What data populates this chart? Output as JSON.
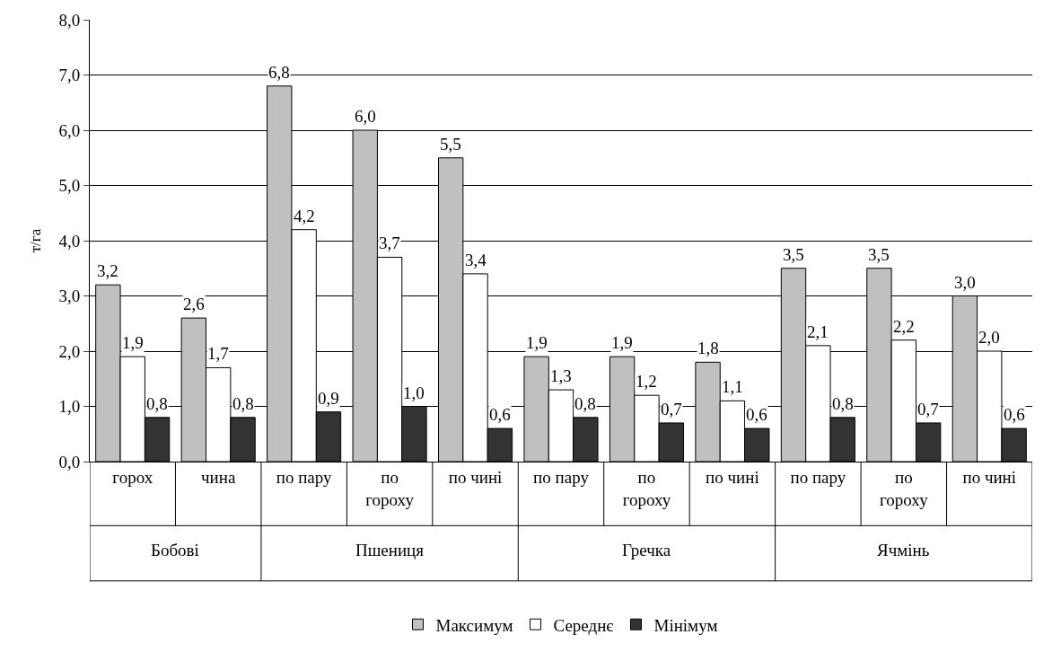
{
  "chart_data": {
    "type": "bar",
    "ylabel": "т/га",
    "categories": [
      "горох",
      "чина",
      "по пару",
      "по гороху",
      "по чині",
      "по пару",
      "по гороху",
      "по чині",
      "по пару",
      "по гороху",
      "по чині"
    ],
    "annotations": [
      "Бобові",
      "Пшениця",
      "Гречка",
      "Ячмінь"
    ],
    "series": [
      {
        "name": "Максимум",
        "color": "#c0c0c0",
        "values": [
          3.2,
          2.6,
          6.8,
          6.0,
          5.5,
          1.9,
          1.9,
          1.8,
          3.5,
          3.5,
          3.0
        ],
        "value_labels": [
          "3,2",
          "2,6",
          "6,8",
          "6,0",
          "5,5",
          "1,9",
          "1,9",
          "1,8",
          "3,5",
          "3,5",
          "3,0"
        ]
      },
      {
        "name": "Середнє",
        "color": "#ffffff",
        "values": [
          1.9,
          1.7,
          4.2,
          3.7,
          3.4,
          1.3,
          1.2,
          1.1,
          2.1,
          2.2,
          2.0
        ],
        "value_labels": [
          "1,9",
          "1,7",
          "4,2",
          "3,7",
          "3,4",
          "1,3",
          "1,2",
          "1,1",
          "2,1",
          "2,2",
          "2,0"
        ]
      },
      {
        "name": "Мінімум",
        "color": "#333333",
        "values": [
          0.8,
          0.8,
          0.9,
          1.0,
          0.6,
          0.8,
          0.7,
          0.6,
          0.8,
          0.7,
          0.6
        ],
        "value_labels": [
          "0,8",
          "0,8",
          "0,9",
          "1,0",
          "0,6",
          "0,8",
          "0,7",
          "0,6",
          "0,8",
          "0,7",
          "0,6"
        ]
      }
    ],
    "ylim": [
      0,
      8
    ],
    "yticks": [
      {
        "value": 0,
        "label": "0,0"
      },
      {
        "value": 1,
        "label": "1,0"
      },
      {
        "value": 2,
        "label": "2,0"
      },
      {
        "value": 3,
        "label": "3,0"
      },
      {
        "value": 4,
        "label": "4,0"
      },
      {
        "value": 5,
        "label": "5,0"
      },
      {
        "value": 6,
        "label": "6,0"
      },
      {
        "value": 7,
        "label": "7,0"
      },
      {
        "value": 8,
        "label": "8,0"
      }
    ],
    "grid": "y",
    "legend": "bottom"
  }
}
